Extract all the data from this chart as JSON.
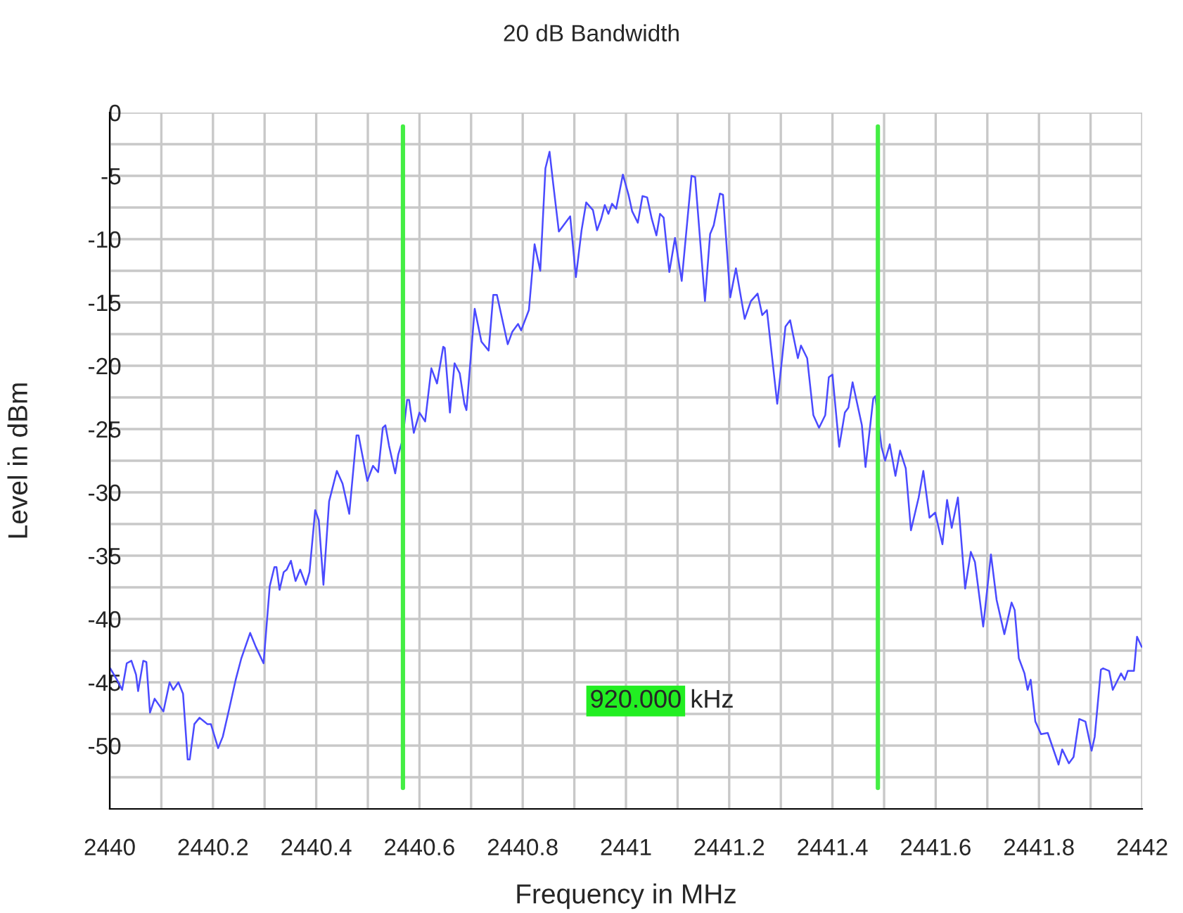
{
  "chart_data": {
    "type": "line",
    "title": "20 dB Bandwidth",
    "xlabel": "Frequency in MHz",
    "ylabel": "Level in dBm",
    "x": [
      2440.001,
      2440.014,
      2440.024,
      2440.033,
      2440.042,
      2440.051,
      2440.055,
      2440.065,
      2440.071,
      2440.078,
      2440.087,
      2440.104,
      2440.116,
      2440.123,
      2440.133,
      2440.142,
      2440.151,
      2440.155,
      2440.164,
      2440.174,
      2440.183,
      2440.189,
      2440.196,
      2440.21,
      2440.219,
      2440.232,
      2440.244,
      2440.255,
      2440.272,
      2440.283,
      2440.298,
      2440.31,
      2440.319,
      2440.323,
      2440.329,
      2440.337,
      2440.343,
      2440.351,
      2440.36,
      2440.369,
      2440.38,
      2440.387,
      2440.398,
      2440.405,
      2440.414,
      2440.425,
      2440.44,
      2440.451,
      2440.464,
      2440.478,
      2440.482,
      2440.499,
      2440.51,
      2440.52,
      2440.529,
      2440.534,
      2440.541,
      2440.553,
      2440.559,
      2440.567,
      2440.576,
      2440.58,
      2440.589,
      2440.6,
      2440.611,
      2440.623,
      2440.634,
      2440.646,
      2440.649,
      2440.659,
      2440.668,
      2440.678,
      2440.687,
      2440.691,
      2440.707,
      2440.72,
      2440.734,
      2440.743,
      2440.75,
      2440.771,
      2440.78,
      2440.791,
      2440.797,
      2440.812,
      2440.823,
      2440.834,
      2440.844,
      2440.852,
      2440.859,
      2440.87,
      2440.892,
      2440.903,
      2440.914,
      2440.923,
      2440.936,
      2440.944,
      2440.952,
      2440.959,
      2440.966,
      2440.973,
      2440.981,
      2440.994,
      2441.005,
      2441.012,
      2441.023,
      2441.032,
      2441.041,
      2441.05,
      2441.059,
      2441.066,
      2441.073,
      2441.084,
      2441.095,
      2441.108,
      2441.127,
      2441.134,
      2441.153,
      2441.163,
      2441.17,
      2441.182,
      2441.188,
      2441.202,
      2441.213,
      2441.23,
      2441.242,
      2441.255,
      2441.264,
      2441.273,
      2441.293,
      2441.309,
      2441.318,
      2441.333,
      2441.339,
      2441.351,
      2441.363,
      2441.374,
      2441.386,
      2441.393,
      2441.4,
      2441.413,
      2441.424,
      2441.431,
      2441.439,
      2441.457,
      2441.464,
      2441.479,
      2441.483,
      2441.495,
      2441.502,
      2441.511,
      2441.522,
      2441.531,
      2441.542,
      2441.552,
      2441.567,
      2441.576,
      2441.588,
      2441.599,
      2441.613,
      2441.622,
      2441.631,
      2441.643,
      2441.657,
      2441.668,
      2441.676,
      2441.692,
      2441.707,
      2441.718,
      2441.733,
      2441.747,
      2441.753,
      2441.761,
      2441.772,
      2441.778,
      2441.784,
      2441.793,
      2441.804,
      2441.817,
      2441.838,
      2441.845,
      2441.858,
      2441.867,
      2441.878,
      2441.89,
      2441.902,
      2441.908,
      2441.92,
      2441.924,
      2441.936,
      2441.943,
      2441.959,
      2441.966,
      2441.972,
      2441.984,
      2441.99,
      2441.999
    ],
    "series": [
      {
        "color": "#4a4aff",
        "values": [
          -43.9,
          -44.8,
          -45.6,
          -43.5,
          -43.3,
          -44.4,
          -45.7,
          -43.3,
          -43.4,
          -47.4,
          -46.3,
          -47.3,
          -45.0,
          -45.6,
          -45.0,
          -45.9,
          -51.1,
          -51.1,
          -48.3,
          -47.8,
          -48.1,
          -48.3,
          -48.3,
          -50.2,
          -49.3,
          -47.0,
          -44.8,
          -43.1,
          -41.1,
          -42.2,
          -43.5,
          -37.4,
          -35.9,
          -35.9,
          -37.7,
          -36.3,
          -36.1,
          -35.4,
          -37.0,
          -36.1,
          -37.3,
          -36.3,
          -31.4,
          -32.2,
          -37.3,
          -30.7,
          -28.3,
          -29.3,
          -31.7,
          -25.5,
          -25.5,
          -29.1,
          -27.9,
          -28.4,
          -24.9,
          -24.7,
          -26.3,
          -28.5,
          -27.0,
          -25.9,
          -22.7,
          -22.7,
          -25.3,
          -23.7,
          -24.4,
          -20.2,
          -21.4,
          -18.5,
          -18.6,
          -23.7,
          -19.8,
          -20.6,
          -23.0,
          -23.5,
          -15.5,
          -18.1,
          -18.8,
          -14.4,
          -14.4,
          -18.3,
          -17.3,
          -16.7,
          -17.2,
          -15.6,
          -10.4,
          -12.5,
          -4.4,
          -3.1,
          -5.6,
          -9.4,
          -8.2,
          -13.0,
          -9.3,
          -7.1,
          -7.7,
          -9.3,
          -8.4,
          -7.3,
          -8.0,
          -7.2,
          -7.6,
          -4.9,
          -6.5,
          -7.8,
          -8.7,
          -6.6,
          -6.7,
          -8.4,
          -9.7,
          -8.0,
          -8.3,
          -12.6,
          -9.9,
          -13.3,
          -5.0,
          -5.1,
          -14.9,
          -9.6,
          -8.9,
          -6.4,
          -6.5,
          -14.6,
          -12.3,
          -16.3,
          -14.9,
          -14.3,
          -16.0,
          -15.6,
          -23.0,
          -16.9,
          -16.4,
          -19.4,
          -18.4,
          -19.4,
          -23.9,
          -24.9,
          -23.9,
          -20.9,
          -20.7,
          -26.4,
          -23.7,
          -23.3,
          -21.3,
          -24.7,
          -28.0,
          -22.6,
          -22.4,
          -26.4,
          -27.5,
          -26.2,
          -28.7,
          -26.7,
          -28.1,
          -33.0,
          -30.4,
          -28.3,
          -32.0,
          -31.6,
          -34.1,
          -30.6,
          -32.8,
          -30.4,
          -37.6,
          -34.7,
          -35.5,
          -40.6,
          -34.9,
          -38.5,
          -41.2,
          -38.7,
          -39.3,
          -43.1,
          -44.3,
          -45.6,
          -44.8,
          -48.1,
          -49.1,
          -49.0,
          -51.5,
          -50.3,
          -51.4,
          -50.9,
          -47.9,
          -48.1,
          -50.4,
          -49.3,
          -44.0,
          -43.9,
          -44.1,
          -45.6,
          -44.3,
          -44.8,
          -44.1,
          -44.1,
          -41.4,
          -42.2
        ]
      }
    ],
    "xlim": [
      2440,
      2442
    ],
    "xticks": [
      2440,
      {
        "value": 2440.1,
        "label": null
      },
      {
        "value": 2440.2,
        "label": "2440.2"
      },
      {
        "value": 2440.3,
        "label": null
      },
      {
        "value": 2440.4,
        "label": "2440.4"
      },
      {
        "value": 2440.5,
        "label": null
      },
      {
        "value": 2440.6,
        "label": "2440.6"
      },
      {
        "value": 2440.7,
        "label": null
      },
      {
        "value": 2440.8,
        "label": "2440.8"
      },
      {
        "value": 2440.9,
        "label": null
      },
      2441,
      {
        "value": 2441.1,
        "label": null
      },
      {
        "value": 2441.2,
        "label": "2441.2"
      },
      {
        "value": 2441.3,
        "label": null
      },
      {
        "value": 2441.4,
        "label": "2441.4"
      },
      {
        "value": 2441.5,
        "label": null
      },
      {
        "value": 2441.6,
        "label": "2441.6"
      },
      {
        "value": 2441.7,
        "label": null
      },
      {
        "value": 2441.8,
        "label": "2441.8"
      },
      {
        "value": 2441.9,
        "label": null
      },
      2442
    ],
    "ylim": [
      -55,
      0
    ],
    "yticks": [
      0,
      {
        "value": -2.5,
        "label": null
      },
      -5,
      {
        "value": -7.5,
        "label": null
      },
      -10,
      {
        "value": -12.5,
        "label": null
      },
      -15,
      {
        "value": -17.5,
        "label": null
      },
      -20,
      {
        "value": -22.5,
        "label": null
      },
      -25,
      {
        "value": -27.5,
        "label": null
      },
      -30,
      {
        "value": -32.5,
        "label": null
      },
      -35,
      {
        "value": -37.5,
        "label": null
      },
      -40,
      {
        "value": -42.5,
        "label": null
      },
      -45,
      {
        "value": -47.5,
        "label": null
      },
      -50,
      {
        "value": -52.5,
        "label": null
      }
    ],
    "ref_lines": [
      {
        "axis": "x",
        "value": 2440.568,
        "color": "#44ee44"
      },
      {
        "axis": "x",
        "value": 2441.488,
        "color": "#44ee44"
      }
    ],
    "annotations": [
      "920.000 kHz"
    ],
    "grid": true,
    "marker": "none",
    "line_style": "solid",
    "legend": false
  }
}
